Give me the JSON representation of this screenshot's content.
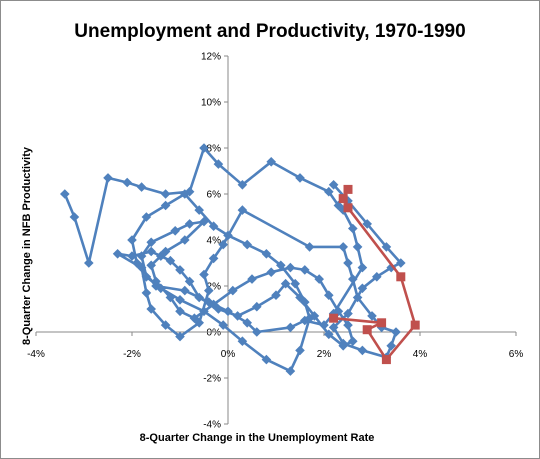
{
  "chart_data": {
    "type": "scatter",
    "title": "Unemployment and Productivity, 1970-1990",
    "xlabel": "8-Quarter Change in the Unemployment Rate",
    "ylabel": "8-Quarter Change in NFB Productivity",
    "xlim": [
      -4,
      6
    ],
    "ylim": [
      -4,
      12
    ],
    "x_ticks": [
      -4,
      -2,
      0,
      2,
      4,
      6
    ],
    "x_tick_labels": [
      "-4%",
      "-2%",
      "0%",
      "2%",
      "4%",
      "6%"
    ],
    "y_ticks": [
      -4,
      -2,
      0,
      2,
      4,
      6,
      8,
      10,
      12
    ],
    "y_tick_labels": [
      "-4%",
      "-2%",
      "0%",
      "2%",
      "4%",
      "6%",
      "8%",
      "10%",
      "12%"
    ],
    "grid": false,
    "legend": "none",
    "series": [
      {
        "color": "#4f81bd",
        "marker": "diamond",
        "points": [
          [
            -3.4,
            6.0
          ],
          [
            -3.2,
            5.0
          ],
          [
            -2.9,
            3.0
          ],
          [
            -2.5,
            6.7
          ],
          [
            -2.1,
            6.5
          ],
          [
            -1.8,
            6.3
          ],
          [
            -1.3,
            6.0
          ],
          [
            -0.8,
            6.1
          ],
          [
            -0.5,
            8.0
          ],
          [
            -0.2,
            7.3
          ],
          [
            0.3,
            6.4
          ],
          [
            0.9,
            7.4
          ],
          [
            1.5,
            6.7
          ],
          [
            2.1,
            6.1
          ],
          [
            2.3,
            5.5
          ],
          [
            2.4,
            5.3
          ],
          [
            2.6,
            4.5
          ],
          [
            2.7,
            3.7
          ],
          [
            2.8,
            2.8
          ],
          [
            2.2,
            0.8
          ],
          [
            2.0,
            0.3
          ],
          [
            1.6,
            0.5
          ],
          [
            1.3,
            0.2
          ],
          [
            0.6,
            0.0
          ],
          [
            0.4,
            0.4
          ],
          [
            0.0,
            0.9
          ],
          [
            -0.4,
            1.3
          ],
          [
            -0.9,
            1.8
          ],
          [
            -1.5,
            2.0
          ],
          [
            -1.9,
            3.0
          ],
          [
            -2.0,
            4.0
          ],
          [
            -1.7,
            5.0
          ],
          [
            -1.3,
            5.5
          ],
          [
            -0.9,
            6.0
          ],
          [
            -0.6,
            5.3
          ],
          [
            -0.3,
            4.6
          ],
          [
            0.0,
            4.2
          ],
          [
            0.4,
            3.8
          ],
          [
            0.8,
            3.4
          ],
          [
            1.1,
            2.9
          ],
          [
            1.4,
            2.1
          ],
          [
            1.6,
            1.3
          ],
          [
            1.7,
            0.6
          ],
          [
            1.5,
            -0.8
          ],
          [
            1.3,
            -1.7
          ],
          [
            0.8,
            -1.2
          ],
          [
            0.3,
            -0.4
          ],
          [
            -0.1,
            0.3
          ],
          [
            -0.5,
            0.9
          ],
          [
            -1.0,
            1.4
          ],
          [
            -1.4,
            1.9
          ],
          [
            -1.7,
            2.4
          ],
          [
            -1.8,
            3.3
          ],
          [
            -1.6,
            3.9
          ],
          [
            -1.1,
            4.4
          ],
          [
            -0.8,
            4.7
          ],
          [
            -0.5,
            4.8
          ],
          [
            -0.9,
            4.0
          ],
          [
            -1.3,
            3.5
          ],
          [
            -1.6,
            2.9
          ],
          [
            -1.5,
            2.2
          ],
          [
            -1.2,
            1.5
          ],
          [
            -1.0,
            0.9
          ],
          [
            -0.7,
            0.6
          ],
          [
            -0.3,
            1.2
          ],
          [
            0.1,
            1.8
          ],
          [
            0.5,
            2.3
          ],
          [
            0.9,
            2.6
          ],
          [
            1.3,
            2.8
          ],
          [
            1.6,
            2.7
          ],
          [
            1.9,
            2.3
          ],
          [
            2.1,
            1.6
          ],
          [
            2.3,
            0.9
          ],
          [
            2.5,
            0.3
          ],
          [
            2.6,
            -0.4
          ],
          [
            2.4,
            -0.6
          ],
          [
            2.1,
            -0.1
          ],
          [
            1.8,
            0.7
          ],
          [
            1.5,
            1.5
          ],
          [
            1.2,
            2.1
          ],
          [
            1.0,
            1.6
          ],
          [
            0.6,
            1.1
          ],
          [
            0.2,
            0.7
          ],
          [
            -0.2,
            1.0
          ],
          [
            -0.6,
            1.5
          ],
          [
            -0.8,
            2.2
          ],
          [
            -1.0,
            2.7
          ],
          [
            -1.2,
            3.1
          ],
          [
            -1.4,
            3.3
          ],
          [
            -1.6,
            3.5
          ],
          [
            -2.0,
            3.3
          ],
          [
            -2.3,
            3.4
          ],
          [
            -1.8,
            2.8
          ],
          [
            -1.7,
            1.7
          ],
          [
            -1.6,
            1.0
          ],
          [
            -1.3,
            0.3
          ],
          [
            -1.0,
            -0.2
          ],
          [
            -0.6,
            0.4
          ],
          [
            -0.4,
            1.8
          ],
          [
            -0.5,
            2.5
          ],
          [
            -0.3,
            3.2
          ],
          [
            -0.1,
            3.8
          ],
          [
            0.3,
            5.3
          ],
          [
            1.7,
            3.7
          ],
          [
            2.4,
            3.7
          ],
          [
            2.5,
            3.0
          ],
          [
            2.6,
            2.3
          ],
          [
            2.7,
            1.5
          ],
          [
            3.0,
            0.7
          ],
          [
            3.2,
            0.2
          ],
          [
            3.5,
            0.0
          ],
          [
            3.4,
            -0.6
          ],
          [
            3.3,
            -1.1
          ],
          [
            2.8,
            -0.8
          ],
          [
            2.4,
            -0.5
          ],
          [
            2.2,
            0.2
          ],
          [
            2.5,
            0.8
          ],
          [
            2.8,
            1.9
          ],
          [
            3.1,
            2.4
          ],
          [
            3.4,
            2.8
          ],
          [
            3.6,
            3.0
          ],
          [
            3.3,
            3.7
          ],
          [
            2.9,
            4.7
          ],
          [
            2.5,
            5.7
          ],
          [
            2.2,
            6.4
          ]
        ]
      },
      {
        "color": "#c0504d",
        "marker": "square",
        "points": [
          [
            2.5,
            6.2
          ],
          [
            2.4,
            5.8
          ],
          [
            2.5,
            5.4
          ],
          [
            3.6,
            2.4
          ],
          [
            3.9,
            0.3
          ],
          [
            3.3,
            -1.2
          ],
          [
            2.9,
            0.1
          ],
          [
            3.2,
            0.4
          ],
          [
            2.2,
            0.6
          ]
        ]
      }
    ]
  }
}
